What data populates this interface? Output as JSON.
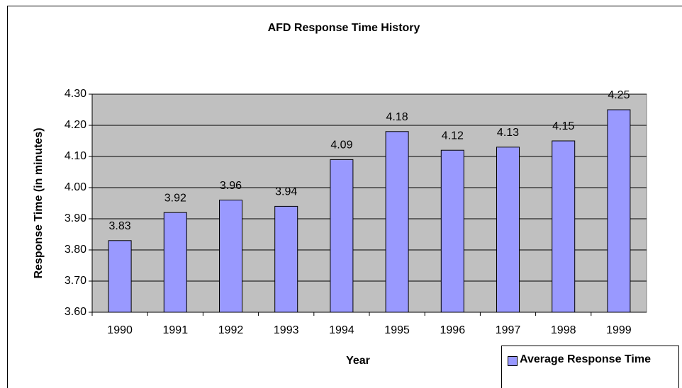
{
  "chart_data": {
    "type": "bar",
    "title": "AFD Response Time History",
    "x_label": "Year",
    "y_label": "Response Time (in minutes)",
    "categories": [
      "1990",
      "1991",
      "1992",
      "1993",
      "1994",
      "1995",
      "1996",
      "1997",
      "1998",
      "1999"
    ],
    "series": [
      {
        "name": "Average Response Time",
        "color": "#9999ff",
        "values": [
          3.83,
          3.92,
          3.96,
          3.94,
          4.09,
          4.18,
          4.12,
          4.13,
          4.15,
          4.25
        ]
      }
    ],
    "ylim": [
      3.6,
      4.3
    ],
    "yticks": [
      {
        "value": 3.6,
        "label": "3.60"
      },
      {
        "value": 3.7,
        "label": "3.70"
      },
      {
        "value": 3.8,
        "label": "3.80"
      },
      {
        "value": 3.9,
        "label": "3.90"
      },
      {
        "value": 4,
        "label": "4.00"
      },
      {
        "value": 4.1,
        "label": "4.10"
      },
      {
        "value": 4.2,
        "label": "4.20"
      },
      {
        "value": 4.3,
        "label": "4.30"
      }
    ],
    "grid": true,
    "legend": "bottom-right"
  }
}
